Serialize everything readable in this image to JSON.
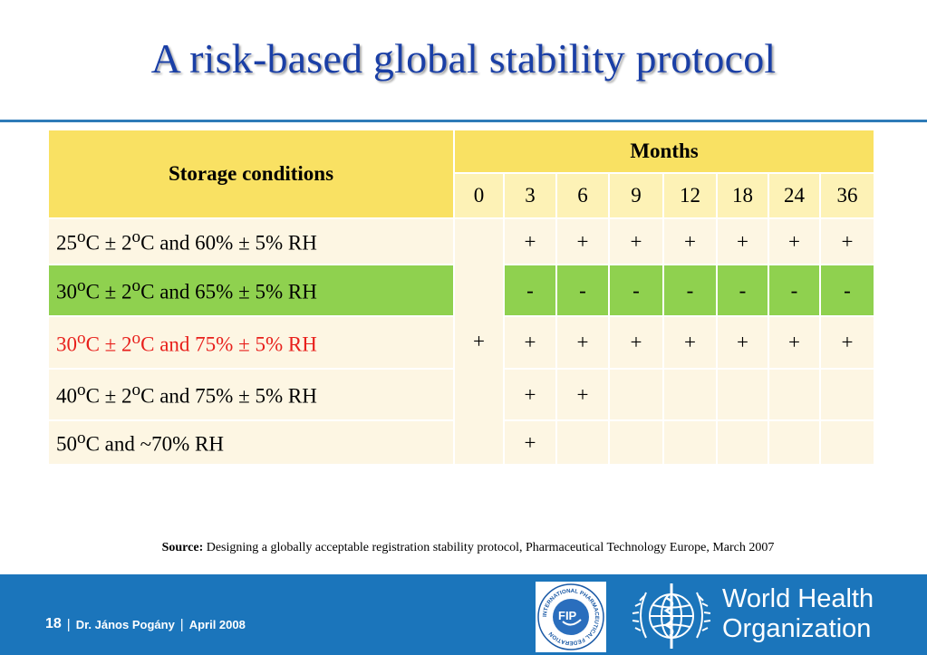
{
  "title": "A risk-based global stability protocol",
  "table": {
    "conditions_header": "Storage conditions",
    "months_header": "Months",
    "months": [
      "0",
      "3",
      "6",
      "9",
      "12",
      "18",
      "24",
      "36"
    ],
    "zero_month_value": "+",
    "rows": [
      {
        "label_html": "25<sup>o</sup>C ± 2<sup>o</sup>C and 60% ± 5% RH",
        "label": "25oC ± 2oC and 60% ± 5% RH",
        "values": [
          "+",
          "+",
          "+",
          "+",
          "+",
          "+",
          "+"
        ]
      },
      {
        "label_html": "30<sup>o</sup>C ± 2<sup>o</sup>C and 65% ± 5% RH",
        "label": "30oC ± 2oC and 65% ± 5% RH",
        "values": [
          "-",
          "-",
          "-",
          "-",
          "-",
          "-",
          "-"
        ]
      },
      {
        "label_html": "30<sup>o</sup>C ± 2<sup>o</sup>C and 75% ± 5% RH",
        "label": "30oC ± 2oC and 75% ± 5% RH",
        "values": [
          "+",
          "+",
          "+",
          "+",
          "+",
          "+",
          "+"
        ]
      },
      {
        "label_html": "40<sup>o</sup>C ± 2<sup>o</sup>C and 75% ± 5% RH",
        "label": "40oC ± 2oC and 75% ± 5% RH",
        "values": [
          "+",
          "+",
          "",
          "",
          "",
          "",
          ""
        ]
      },
      {
        "label_html": "50<sup>o</sup>C  and ~70% RH",
        "label": "50oC  and ~70% RH",
        "values": [
          "+",
          "",
          "",
          "",
          "",
          "",
          ""
        ]
      }
    ]
  },
  "source": {
    "label": "Source:",
    "text": "Designing a globally acceptable registration stability protocol, Pharmaceutical Technology Europe, March 2007"
  },
  "footer": {
    "page_number": "18",
    "author": "Dr. János Pogány",
    "date": "April 2008",
    "fip_text": "INTERNATIONAL PHARMACEUTICAL FEDERATION",
    "fip_abbr": "FIP",
    "who_line1": "World Health",
    "who_line2": "Organization"
  },
  "colors": {
    "title": "#1a3fa6",
    "header_fill": "#f9e163",
    "row_cream": "#fdf6e3",
    "row_green": "#8fd14f",
    "highlight_text": "#e8201c",
    "footer_blue": "#1b75bb"
  }
}
